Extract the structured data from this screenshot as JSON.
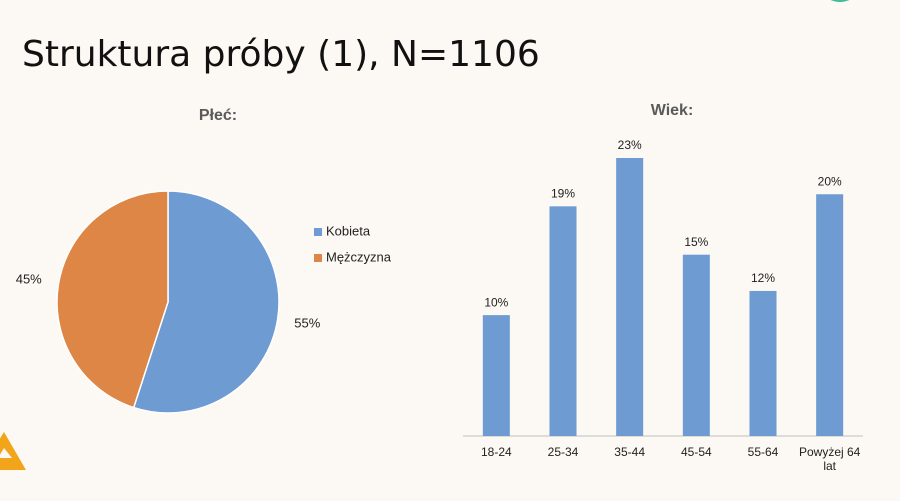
{
  "title": "Struktura próby (1), N=1106",
  "chart_data": [
    {
      "type": "pie",
      "title": "Płeć:",
      "categories": [
        "Kobieta",
        "Mężczyzna"
      ],
      "values": [
        55,
        45
      ],
      "value_labels": [
        "55%",
        "45%"
      ],
      "colors": [
        "#6d9bd2",
        "#dd8645"
      ],
      "legend": "right"
    },
    {
      "type": "bar",
      "title": "Wiek:",
      "categories": [
        "18-24",
        "25-34",
        "35-44",
        "45-54",
        "55-64",
        "Powyżej 64 lat"
      ],
      "values": [
        10,
        19,
        23,
        15,
        12,
        20
      ],
      "value_labels": [
        "10%",
        "19%",
        "23%",
        "15%",
        "12%",
        "20%"
      ],
      "color": "#6d9bd2"
    }
  ]
}
